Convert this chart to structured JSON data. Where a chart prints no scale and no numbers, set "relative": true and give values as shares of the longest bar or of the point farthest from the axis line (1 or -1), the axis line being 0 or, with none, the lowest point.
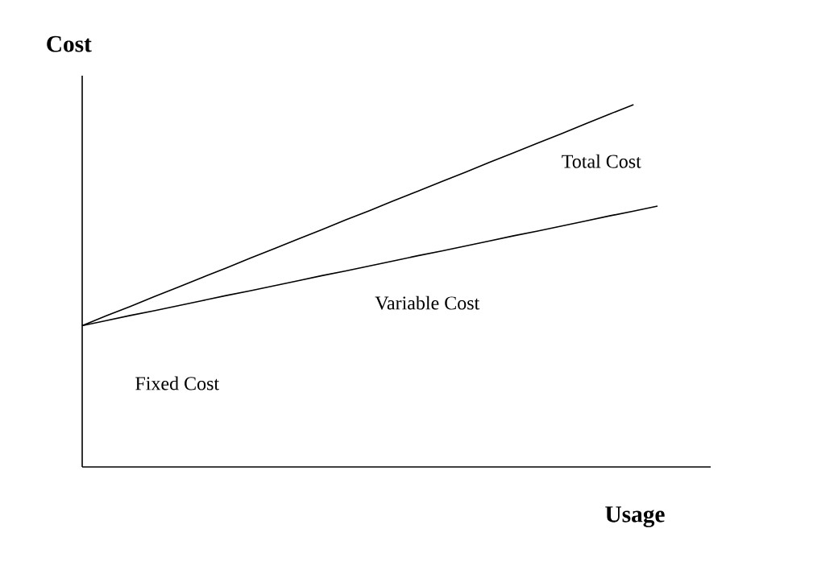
{
  "chart_data": {
    "type": "line",
    "relative": true,
    "ylabel": "Cost",
    "xlabel": "Usage",
    "categories": [
      null,
      null,
      null,
      null,
      null,
      null,
      null,
      null,
      null,
      null,
      null,
      null,
      null,
      null,
      null,
      null,
      null,
      null,
      null,
      null,
      null,
      null,
      null,
      null,
      null
    ],
    "series": [
      {
        "name": "Total Cost",
        "color": "#000000",
        "values": [
          0.39,
          0.417,
          0.443,
          0.47,
          0.496,
          0.523,
          0.549,
          0.576,
          0.602,
          0.629,
          0.655,
          0.682,
          0.708,
          0.735,
          0.761,
          0.788,
          0.814,
          0.841,
          0.867,
          0.894,
          0.92,
          0.947,
          0.974,
          1,
          null
        ]
      },
      {
        "name": "Variable Cost",
        "color": "#000000",
        "values": [
          0.39,
          0.404,
          0.418,
          0.431,
          0.445,
          0.459,
          0.473,
          0.486,
          0.5,
          0.514,
          0.528,
          0.541,
          0.555,
          0.569,
          0.583,
          0.596,
          0.61,
          0.624,
          0.638,
          0.651,
          0.665,
          0.679,
          0.693,
          0.706,
          0.72
        ]
      }
    ],
    "annotations": [
      "Fixed Cost"
    ]
  }
}
